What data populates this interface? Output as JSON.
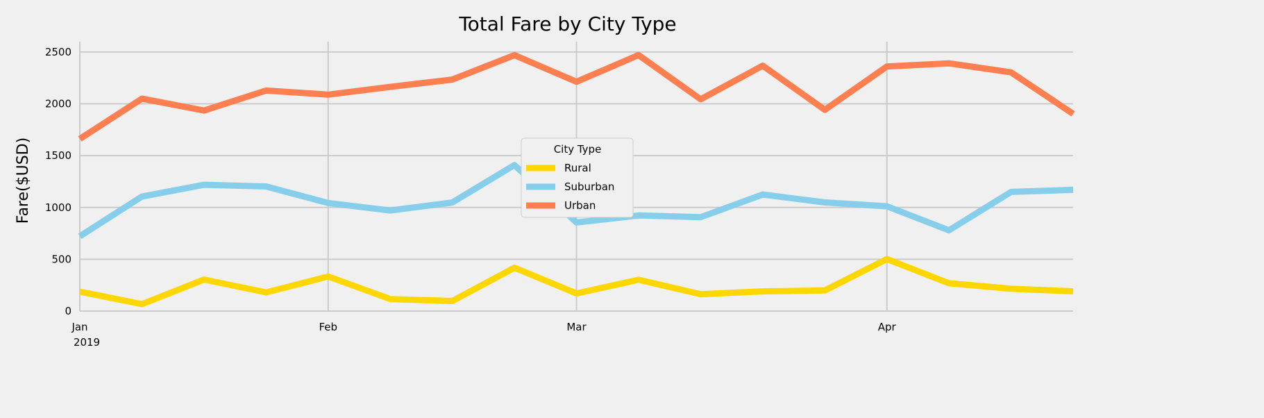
{
  "chart_data": {
    "type": "line",
    "title": "Total Fare by City Type",
    "xlabel": "",
    "ylabel": "Fare($USD)",
    "x": [
      "2019-01-06",
      "2019-01-13",
      "2019-01-20",
      "2019-01-27",
      "2019-02-03",
      "2019-02-10",
      "2019-02-17",
      "2019-02-24",
      "2019-03-03",
      "2019-03-10",
      "2019-03-17",
      "2019-03-24",
      "2019-03-31",
      "2019-04-07",
      "2019-04-14",
      "2019-04-21",
      "2019-04-28"
    ],
    "x_ticks": [
      {
        "date": "2019-01-06",
        "label": "Jan",
        "sublabel": "2019"
      },
      {
        "date": "2019-02-03",
        "label": "Feb",
        "sublabel": ""
      },
      {
        "date": "2019-03-03",
        "label": "Mar",
        "sublabel": ""
      },
      {
        "date": "2019-04-07",
        "label": "Apr",
        "sublabel": ""
      }
    ],
    "ylim": [
      0,
      2600
    ],
    "y_ticks": [
      0,
      500,
      1000,
      1500,
      2000,
      2500
    ],
    "grid": true,
    "legend": {
      "title": "City Type",
      "placement": "center"
    },
    "series": [
      {
        "name": "Rural",
        "color": "#FFD700",
        "values": [
          187,
          67,
          304,
          180,
          334,
          116,
          97,
          418,
          170,
          302,
          163,
          190,
          199,
          502,
          269,
          215,
          191
        ]
      },
      {
        "name": "Suburban",
        "color": "#87CEEB",
        "values": [
          722,
          1105,
          1219,
          1203,
          1043,
          971,
          1048,
          1409,
          855,
          923,
          906,
          1125,
          1049,
          1011,
          779,
          1150,
          1170
        ]
      },
      {
        "name": "Urban",
        "color": "#FF7F50",
        "values": [
          1662,
          2050,
          1935,
          2128,
          2089,
          2164,
          2234,
          2470,
          2213,
          2471,
          2044,
          2368,
          1942,
          2361,
          2391,
          2304,
          1903
        ]
      }
    ]
  }
}
